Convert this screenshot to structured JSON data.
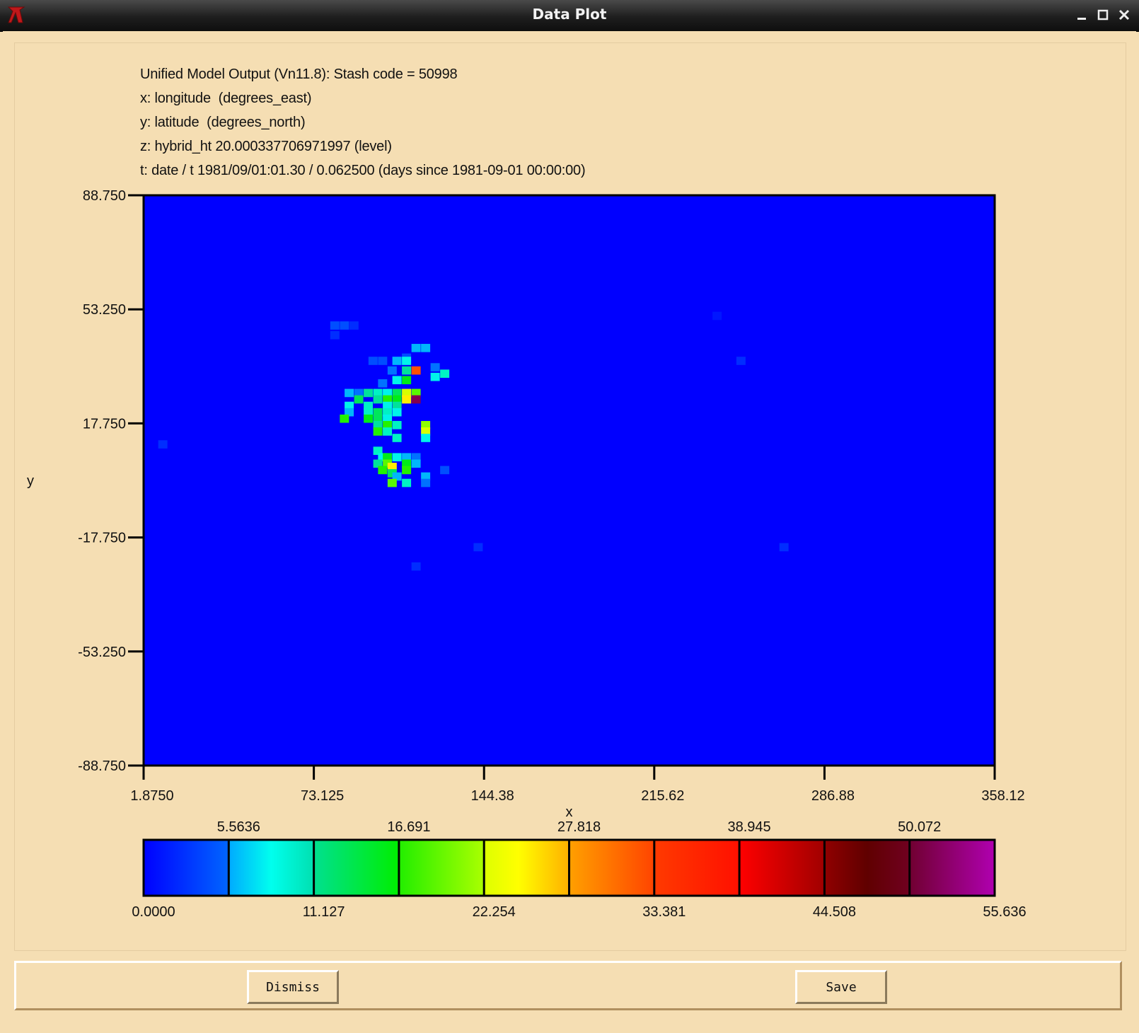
{
  "window": {
    "title": "Data Plot"
  },
  "header": {
    "line1": "Unified Model Output (Vn11.8): Stash code = 50998",
    "line2": "x: longitude  (degrees_east)",
    "line3": "y: latitude  (degrees_north)",
    "line4": "z: hybrid_ht 20.000337706971997 (level)",
    "line5": "t: date / t 1981/09/01:01.30 / 0.062500 (days since 1981-09-01 00:00:00)"
  },
  "chart_data": {
    "type": "heatmap",
    "xlabel": "x",
    "ylabel": "y",
    "xlim": [
      1.875,
      358.12
    ],
    "ylim": [
      -88.75,
      88.75
    ],
    "x_ticks": [
      "1.8750",
      "73.125",
      "144.38",
      "215.62",
      "286.88",
      "358.12"
    ],
    "y_ticks": [
      "88.750",
      "53.250",
      "17.750",
      "-17.750",
      "-53.250",
      "-88.750"
    ],
    "background_value": 0.0,
    "cells": [
      [
        80,
        47,
        3
      ],
      [
        84,
        47,
        3
      ],
      [
        88,
        47,
        2
      ],
      [
        80,
        44,
        2
      ],
      [
        114,
        40,
        6
      ],
      [
        118,
        40,
        6
      ],
      [
        110,
        37,
        3
      ],
      [
        122,
        34,
        4
      ],
      [
        96,
        36,
        3
      ],
      [
        100,
        36,
        3
      ],
      [
        106,
        36,
        6
      ],
      [
        110,
        36,
        8
      ],
      [
        104,
        33,
        4
      ],
      [
        110,
        33,
        12
      ],
      [
        114,
        33,
        35
      ],
      [
        122,
        31,
        8
      ],
      [
        126,
        32,
        10
      ],
      [
        106,
        30,
        8
      ],
      [
        110,
        30,
        16
      ],
      [
        100,
        29,
        4
      ],
      [
        86,
        26,
        6
      ],
      [
        90,
        26,
        4
      ],
      [
        94,
        26,
        12
      ],
      [
        98,
        26,
        10
      ],
      [
        102,
        26,
        8
      ],
      [
        106,
        26,
        14
      ],
      [
        110,
        26,
        24
      ],
      [
        114,
        26,
        20
      ],
      [
        90,
        24,
        14
      ],
      [
        98,
        24,
        12
      ],
      [
        102,
        24,
        18
      ],
      [
        106,
        24,
        16
      ],
      [
        110,
        24,
        26
      ],
      [
        114,
        24,
        52
      ],
      [
        86,
        22,
        8
      ],
      [
        94,
        22,
        10
      ],
      [
        102,
        22,
        8
      ],
      [
        106,
        22,
        12
      ],
      [
        86,
        20,
        6
      ],
      [
        94,
        20,
        10
      ],
      [
        98,
        20,
        14
      ],
      [
        102,
        20,
        10
      ],
      [
        106,
        20,
        8
      ],
      [
        84,
        18,
        18
      ],
      [
        94,
        18,
        16
      ],
      [
        98,
        18,
        14
      ],
      [
        102,
        18,
        8
      ],
      [
        98,
        16,
        12
      ],
      [
        102,
        16,
        18
      ],
      [
        106,
        16,
        10
      ],
      [
        118,
        16,
        22
      ],
      [
        98,
        14,
        18
      ],
      [
        102,
        14,
        10
      ],
      [
        118,
        14,
        24
      ],
      [
        106,
        12,
        10
      ],
      [
        118,
        12,
        8
      ],
      [
        98,
        8,
        10
      ],
      [
        100,
        6,
        8
      ],
      [
        102,
        6,
        16
      ],
      [
        106,
        6,
        8
      ],
      [
        110,
        6,
        6
      ],
      [
        114,
        6,
        4
      ],
      [
        98,
        4,
        12
      ],
      [
        102,
        4,
        20
      ],
      [
        104,
        3,
        26
      ],
      [
        110,
        4,
        16
      ],
      [
        114,
        4,
        6
      ],
      [
        100,
        2,
        18
      ],
      [
        104,
        1,
        14
      ],
      [
        110,
        2,
        18
      ],
      [
        106,
        0,
        6
      ],
      [
        118,
        0,
        6
      ],
      [
        104,
        -2,
        20
      ],
      [
        110,
        -2,
        10
      ],
      [
        118,
        -2,
        4
      ],
      [
        126,
        2,
        3
      ],
      [
        8,
        10,
        2
      ],
      [
        140,
        -22,
        2
      ],
      [
        114,
        -28,
        2
      ],
      [
        268,
        -22,
        2
      ],
      [
        250,
        36,
        2
      ],
      [
        240,
        50,
        1
      ]
    ],
    "colorbar": {
      "top_labels": [
        "5.5636",
        "16.691",
        "27.818",
        "38.945",
        "50.072"
      ],
      "bottom_labels": [
        "0.0000",
        "11.127",
        "22.254",
        "33.381",
        "44.508",
        "55.636"
      ]
    }
  },
  "buttons": {
    "dismiss": "Dismiss",
    "save": "Save"
  }
}
